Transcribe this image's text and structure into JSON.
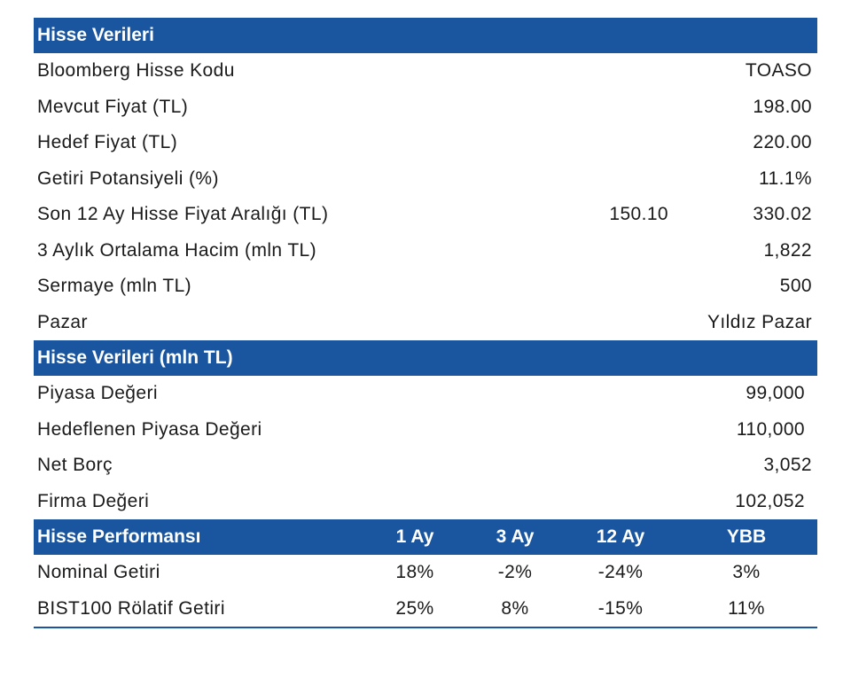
{
  "section1": {
    "header": "Hisse Verileri",
    "rows": [
      {
        "label": "Bloomberg Hisse Kodu",
        "value": "TOASO"
      },
      {
        "label": "Mevcut Fiyat (TL)",
        "value": "198.00"
      },
      {
        "label": "Hedef Fiyat (TL)",
        "value": "220.00"
      },
      {
        "label": "Getiri Potansiyeli (%)",
        "value": "11.1%"
      },
      {
        "label": "Son 12 Ay Hisse Fiyat Aralığı (TL)",
        "low": "150.10",
        "value": "330.02"
      },
      {
        "label": "3 Aylık Ortalama Hacim (mln TL)",
        "value": "1,822"
      },
      {
        "label": "Sermaye (mln TL)",
        "value": "500"
      },
      {
        "label": "Pazar",
        "value": "Yıldız Pazar"
      }
    ]
  },
  "section2": {
    "header": "Hisse Verileri (mln TL)",
    "rows": [
      {
        "label": "Piyasa Değeri",
        "value": "99,000"
      },
      {
        "label": "Hedeflenen Piyasa Değeri",
        "value": "110,000"
      },
      {
        "label": "Net Borç",
        "value": "3,052"
      },
      {
        "label": "Firma Değeri",
        "value": "102,052"
      }
    ]
  },
  "section3": {
    "header": "Hisse Performansı",
    "columns": [
      "1 Ay",
      "3 Ay",
      "12 Ay",
      "YBB"
    ],
    "rows": [
      {
        "label": "Nominal Getiri",
        "values": [
          "18%",
          "-2%",
          "-24%",
          "3%"
        ]
      },
      {
        "label": "BIST100 Rölatif Getiri",
        "values": [
          "25%",
          "8%",
          "-15%",
          "11%"
        ]
      }
    ]
  },
  "colors": {
    "header_bg": "#1a56a0",
    "header_text": "#ffffff",
    "body_text": "#1a1a1a"
  }
}
